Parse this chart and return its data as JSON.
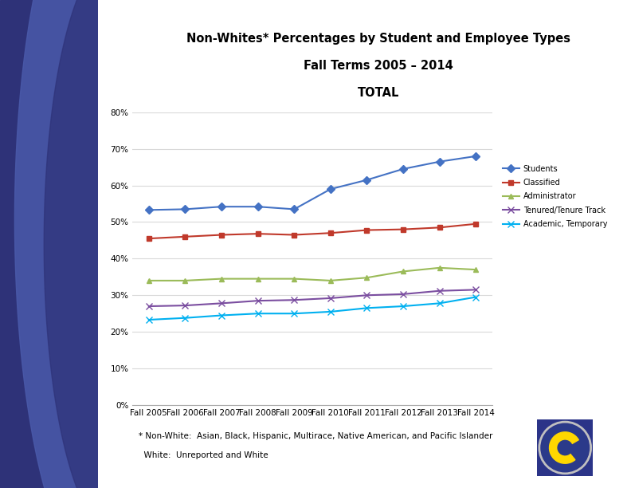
{
  "title_line1": "Non-Whites* Percentages by Student and Employee Types",
  "title_line2": "Fall Terms 2005 – 2014",
  "title_line3": "TOTAL",
  "x_labels": [
    "Fall 2005",
    "Fall 2006",
    "Fall 2007",
    "Fall 2008",
    "Fall 2009",
    "Fall 2010",
    "Fall 2011",
    "Fall 2012",
    "Fall 2013",
    "Fall 2014"
  ],
  "series": {
    "Students": {
      "values": [
        53.3,
        53.5,
        54.2,
        54.2,
        53.5,
        59.0,
        61.5,
        64.5,
        66.5,
        68.0
      ],
      "color": "#4472C4",
      "marker": "D",
      "marker_size": 5
    },
    "Classified": {
      "values": [
        45.5,
        46.0,
        46.5,
        46.8,
        46.5,
        47.0,
        47.8,
        48.0,
        48.5,
        49.5
      ],
      "color": "#C0392B",
      "marker": "s",
      "marker_size": 5
    },
    "Administrator": {
      "values": [
        34.0,
        34.0,
        34.5,
        34.5,
        34.5,
        34.0,
        34.8,
        36.5,
        37.5,
        37.0
      ],
      "color": "#9BBB59",
      "marker": "^",
      "marker_size": 5
    },
    "Tenured/Tenure Track": {
      "values": [
        27.0,
        27.2,
        27.8,
        28.5,
        28.7,
        29.2,
        30.0,
        30.3,
        31.2,
        31.5
      ],
      "color": "#7B4EA0",
      "marker": "x",
      "marker_size": 6
    },
    "Academic, Temporary": {
      "values": [
        23.3,
        23.8,
        24.5,
        25.0,
        25.0,
        25.5,
        26.5,
        27.0,
        27.8,
        29.5
      ],
      "color": "#00B0F0",
      "marker": "x",
      "marker_size": 6
    }
  },
  "ylim": [
    0,
    80
  ],
  "yticks": [
    0,
    10,
    20,
    30,
    40,
    50,
    60,
    70,
    80
  ],
  "ytick_labels": [
    "0%",
    "10%",
    "20%",
    "30%",
    "40%",
    "50%",
    "60%",
    "70%",
    "80%"
  ],
  "footnote_line1": "* Non-White:  Asian, Black, Hispanic, Multirace, Native American, and Pacific Islander",
  "footnote_line2": "  White:  Unreported and White",
  "bg_color": "#FFFFFF",
  "plot_bg_color": "#FFFFFF",
  "grid_color": "#D9D9D9",
  "left_panel_color_dark": "#2E3278",
  "left_panel_color_mid": "#4A5AAA",
  "logo_bg": "#2B3488"
}
